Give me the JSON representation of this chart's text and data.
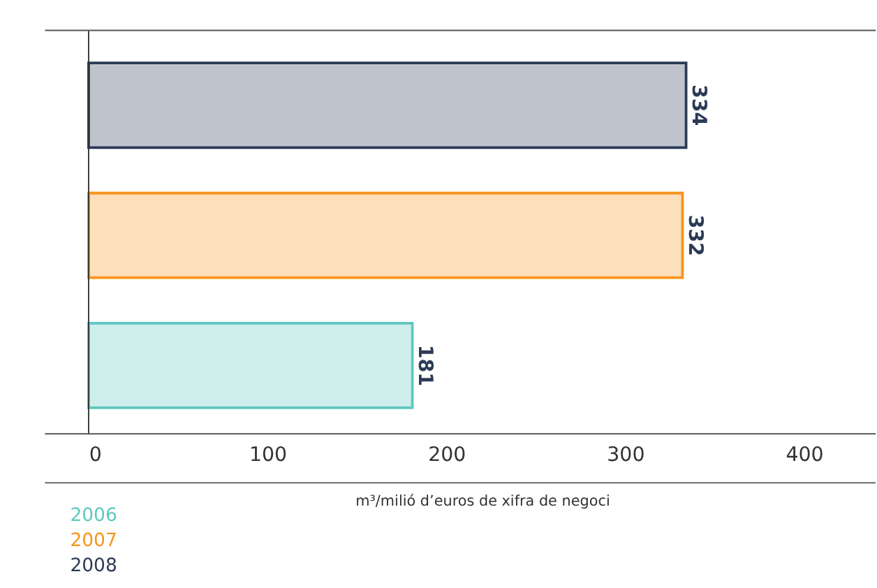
{
  "chart_data": {
    "type": "bar",
    "orientation": "horizontal",
    "categories": [
      null
    ],
    "series": [
      {
        "name": "2006",
        "color": "#5ec8c0",
        "values": [
          181
        ]
      },
      {
        "name": "2007",
        "color": "#f7941d",
        "values": [
          332
        ]
      },
      {
        "name": "2008",
        "color": "#2b3a55",
        "values": [
          334
        ]
      }
    ],
    "xlabel": "m³/milió d’euros de xifra de negoci",
    "xlim": [
      0,
      440
    ],
    "xticks": [
      0,
      100,
      200,
      300,
      400
    ],
    "data_labels": true,
    "grid": false,
    "legend": "bottom left"
  }
}
